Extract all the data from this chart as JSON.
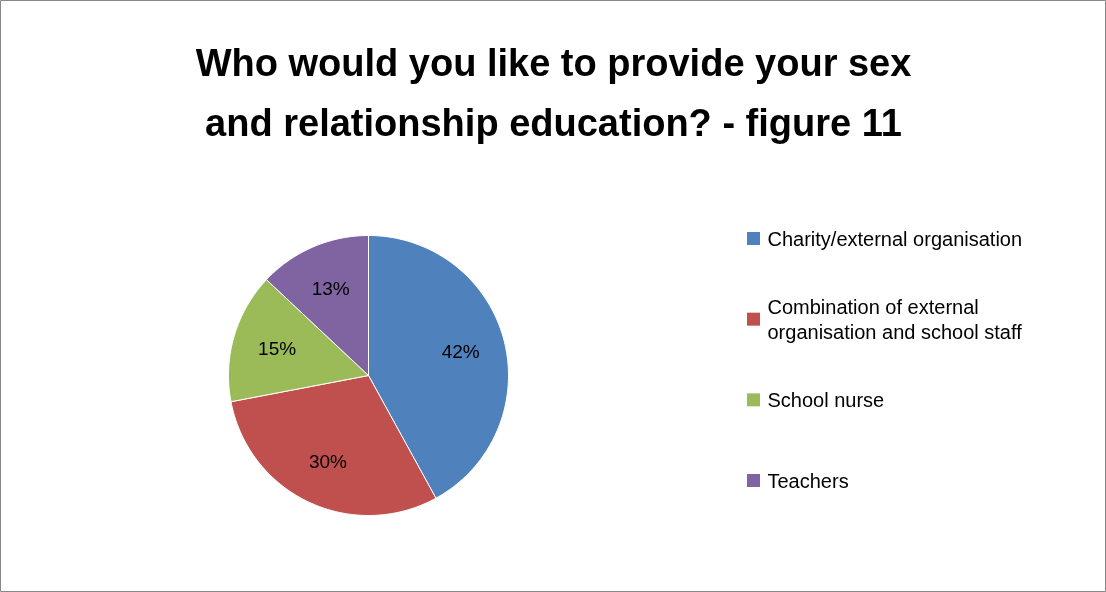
{
  "chart_data": {
    "type": "pie",
    "title": "Who would you like to provide your sex and relationship education? - figure 11",
    "categories": [
      "Charity/external organisation",
      "Combination of external organisation and school staff",
      "School nurse",
      "Teachers"
    ],
    "values": [
      42,
      30,
      15,
      13
    ],
    "colors": [
      "#4f81bd",
      "#c0504d",
      "#9bbb59",
      "#8064a2"
    ],
    "value_labels": [
      "42%",
      "30%",
      "15%",
      "13%"
    ],
    "legend": "right"
  }
}
